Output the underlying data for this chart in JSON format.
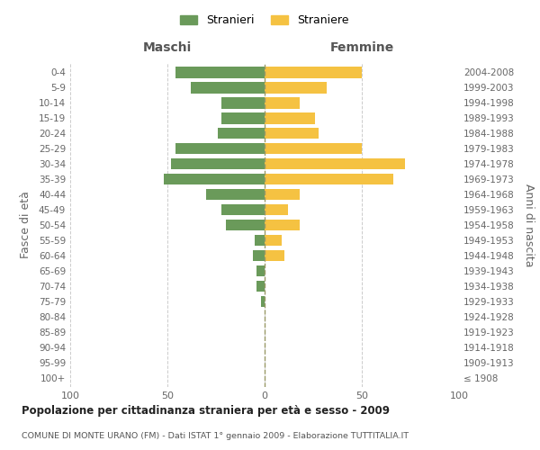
{
  "age_groups": [
    "100+",
    "95-99",
    "90-94",
    "85-89",
    "80-84",
    "75-79",
    "70-74",
    "65-69",
    "60-64",
    "55-59",
    "50-54",
    "45-49",
    "40-44",
    "35-39",
    "30-34",
    "25-29",
    "20-24",
    "15-19",
    "10-14",
    "5-9",
    "0-4"
  ],
  "birth_years": [
    "≤ 1908",
    "1909-1913",
    "1914-1918",
    "1919-1923",
    "1924-1928",
    "1929-1933",
    "1934-1938",
    "1939-1943",
    "1944-1948",
    "1949-1953",
    "1954-1958",
    "1959-1963",
    "1964-1968",
    "1969-1973",
    "1974-1978",
    "1979-1983",
    "1984-1988",
    "1989-1993",
    "1994-1998",
    "1999-2003",
    "2004-2008"
  ],
  "maschi": [
    0,
    0,
    0,
    0,
    0,
    2,
    4,
    4,
    6,
    5,
    20,
    22,
    30,
    52,
    48,
    46,
    24,
    22,
    22,
    38,
    46
  ],
  "femmine": [
    0,
    0,
    0,
    0,
    0,
    0,
    0,
    0,
    10,
    9,
    18,
    12,
    18,
    66,
    72,
    50,
    28,
    26,
    18,
    32,
    50
  ],
  "color_maschi": "#6a9a5a",
  "color_femmine": "#f5c242",
  "legend_maschi": "Stranieri",
  "legend_femmine": "Straniere",
  "title": "Popolazione per cittadinanza straniera per età e sesso - 2009",
  "subtitle": "COMUNE DI MONTE URANO (FM) - Dati ISTAT 1° gennaio 2009 - Elaborazione TUTTITALIA.IT",
  "label_maschi": "Maschi",
  "label_femmine": "Femmine",
  "ylabel_left": "Fasce di età",
  "ylabel_right": "Anni di nascita",
  "xlim": [
    -100,
    100
  ],
  "xticks": [
    -100,
    -50,
    0,
    50,
    100
  ],
  "xticklabels": [
    "100",
    "50",
    "0",
    "50",
    "100"
  ],
  "background_color": "#ffffff",
  "grid_color": "#cccccc",
  "bar_height": 0.75
}
